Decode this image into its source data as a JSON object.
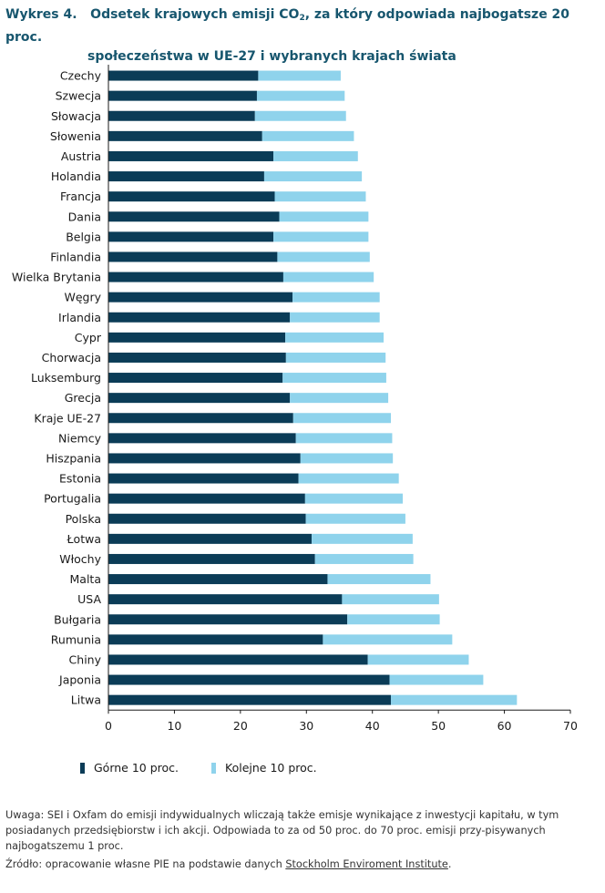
{
  "title": {
    "number": "Wykres 4.",
    "line1_pre": "Odsetek krajowych emisji CO",
    "line1_sub": "2",
    "line1_post": ", za który odpowiada najbogatsze 20 proc.",
    "line2": "społeczeństwa w UE-27 i wybranych krajach świata"
  },
  "colors": {
    "top10": "#0b3c57",
    "next10": "#8fd3ec",
    "title": "#17566e"
  },
  "legend": {
    "top10": "Górne 10 proc.",
    "next10": "Kolejne 10 proc."
  },
  "notes": {
    "uwaga": "Uwaga: SEI i Oxfam do emisji indywidualnych wliczają także emisje wynikające z inwestycji kapitału, w tym posiadanych przedsiębiorstw i ich akcji. Odpowiada to za od 50 proc. do 70 proc. emisji przy-pisywanych najbogatszemu 1 proc.",
    "source_prefix": "Źródło: opracowanie własne PIE na podstawie danych ",
    "source_link": "Stockholm Enviroment Institute",
    "source_suffix": "."
  },
  "chart_data": {
    "type": "bar",
    "orientation": "horizontal",
    "stacked": true,
    "xlim": [
      0,
      70
    ],
    "xticks": [
      0,
      10,
      20,
      30,
      40,
      50,
      60,
      70
    ],
    "categories": [
      "Czechy",
      "Szwecja",
      "Słowacja",
      "Słowenia",
      "Austria",
      "Holandia",
      "Francja",
      "Dania",
      "Belgia",
      "Finlandia",
      "Wielka Brytania",
      "Węgry",
      "Irlandia",
      "Cypr",
      "Chorwacja",
      "Luksemburg",
      "Grecja",
      "Kraje UE-27",
      "Niemcy",
      "Hiszpania",
      "Estonia",
      "Portugalia",
      "Polska",
      "Łotwa",
      "Włochy",
      "Malta",
      "USA",
      "Bułgaria",
      "Rumunia",
      "Chiny",
      "Japonia",
      "Litwa"
    ],
    "series": [
      {
        "name": "Górne 10 proc.",
        "values": [
          22.7,
          22.5,
          22.2,
          23.3,
          25.0,
          23.6,
          25.2,
          25.9,
          25.0,
          25.6,
          26.5,
          27.9,
          27.5,
          26.8,
          26.9,
          26.4,
          27.5,
          28.0,
          28.4,
          29.1,
          28.8,
          29.8,
          29.9,
          30.8,
          31.3,
          33.2,
          35.4,
          36.2,
          32.5,
          39.3,
          42.6,
          42.8
        ]
      },
      {
        "name": "Kolejne 10 proc.",
        "values": [
          12.5,
          13.3,
          13.8,
          13.9,
          12.8,
          14.8,
          13.8,
          13.5,
          14.4,
          14.0,
          13.7,
          13.2,
          13.6,
          14.9,
          15.1,
          15.7,
          14.9,
          14.8,
          14.6,
          14.0,
          15.2,
          14.8,
          15.1,
          15.3,
          14.9,
          15.6,
          14.7,
          14.0,
          19.6,
          15.3,
          14.2,
          19.1
        ]
      }
    ]
  }
}
